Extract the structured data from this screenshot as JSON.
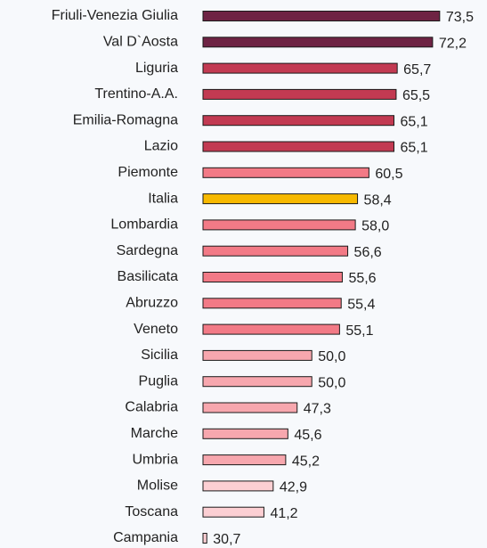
{
  "chart_data": {
    "type": "bar",
    "orientation": "horizontal",
    "categories": [
      "Friuli-Venezia Giulia",
      "Val D`Aosta",
      "Liguria",
      "Trentino-A.A.",
      "Emilia-Romagna",
      "Lazio",
      "Piemonte",
      "Italia",
      "Lombardia",
      "Sardegna",
      "Basilicata",
      "Abruzzo",
      "Veneto",
      "Sicilia",
      "Puglia",
      "Calabria",
      "Marche",
      "Umbria",
      "Molise",
      "Toscana",
      "Campania"
    ],
    "values": [
      73.5,
      72.2,
      65.7,
      65.5,
      65.1,
      65.1,
      60.5,
      58.4,
      58.0,
      56.6,
      55.6,
      55.4,
      55.1,
      50.0,
      50.0,
      47.3,
      45.6,
      45.2,
      42.9,
      41.2,
      30.7
    ],
    "value_labels": [
      "73,5",
      "72,2",
      "65,7",
      "65,5",
      "65,1",
      "65,1",
      "60,5",
      "58,4",
      "58,0",
      "56,6",
      "55,6",
      "55,4",
      "55,1",
      "50,0",
      "50,0",
      "47,3",
      "45,6",
      "45,2",
      "42,9",
      "41,2",
      "30,7"
    ],
    "colors": [
      "#6e2344",
      "#6e2344",
      "#c23a52",
      "#c23a52",
      "#c23a52",
      "#c23a52",
      "#f27a86",
      "#f7b900",
      "#f27a86",
      "#f27a86",
      "#f27a86",
      "#f27a86",
      "#f27a86",
      "#f7a7ae",
      "#f7a7ae",
      "#f7a7ae",
      "#f7a7ae",
      "#f7a7ae",
      "#fccfd3",
      "#fccfd3",
      "#fccfd3"
    ],
    "xlim": [
      30,
      75
    ]
  }
}
